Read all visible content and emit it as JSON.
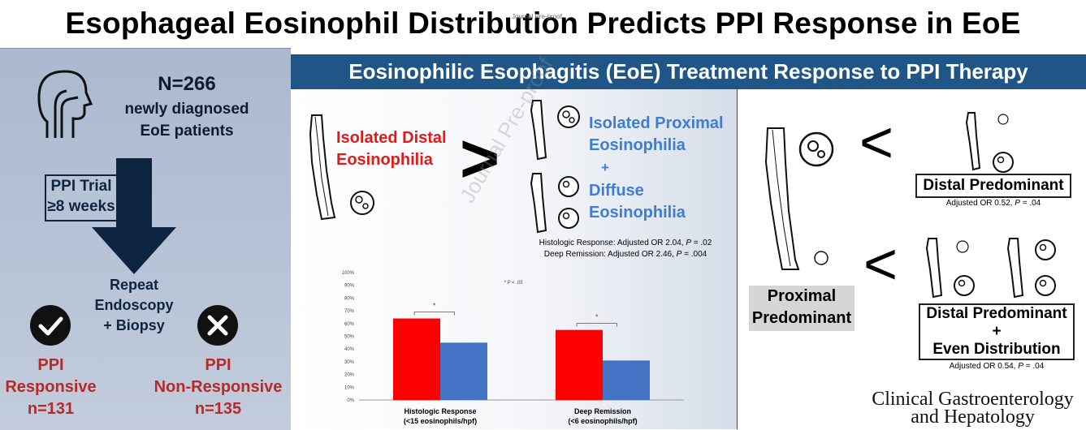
{
  "title": "Esophageal Eosinophil Distribution Predicts PPI Response in EoE",
  "watermark": "Journal Pre-proof",
  "left": {
    "n_label": "N=266",
    "patients_line1": "newly diagnosed",
    "patients_line2": "EoE patients",
    "trial_line1": "PPI Trial",
    "trial_line2": "≥8 weeks",
    "repeat_line1": "Repeat",
    "repeat_line2": "Endoscopy",
    "repeat_line3": "+ Biopsy",
    "responsive_line1": "PPI",
    "responsive_line2": "Responsive",
    "responsive_n": "n=131",
    "nonresponsive_line1": "PPI",
    "nonresponsive_line2": "Non-Responsive",
    "nonresponsive_n": "n=135"
  },
  "banner": "Eosinophilic Esophagitis (EoE) Treatment Response to PPI Therapy",
  "middle": {
    "distal_line1": "Isolated Distal",
    "distal_line2": "Eosinophilia",
    "greater_sign": ">",
    "proximal_line1": "Isolated Proximal",
    "proximal_line2": "Eosinophilia",
    "plus": "+",
    "diffuse_line1": "Diffuse",
    "diffuse_line2": "Eosinophilia",
    "histo_or_text": "Histologic Response: Adjusted OR 2.04, ",
    "histo_p_label": "P",
    "histo_p_value": " = .02",
    "deep_or_text": "Deep Remission: Adjusted OR 2.46, ",
    "deep_p_label": "P",
    "deep_p_value": " = .004",
    "sig_note": "* P < .05",
    "sig_star": "*"
  },
  "right": {
    "less_sign": "<",
    "proximal_line1": "Proximal",
    "proximal_line2": "Predominant",
    "distal_box": "Distal  Predominant",
    "distal_or_text": "Adjusted OR 0.52, ",
    "distal_p_label": "P",
    "distal_p_value": " = .04",
    "even_line1": "Distal Predominant",
    "even_plus": "+",
    "even_line2": "Even Distribution",
    "even_or_text": "Adjusted OR 0.54, ",
    "even_p_label": "P",
    "even_p_value": " = .04"
  },
  "journal_line1": "Clinical Gastroenterology",
  "journal_line2": "and Hepatology",
  "colors": {
    "red_bar": "#ff0000",
    "blue_bar": "#4472c4",
    "banner": "#1f5687",
    "response_red": "#b52a2a",
    "dark_navy": "#0d2540"
  },
  "chart_data": {
    "type": "bar",
    "categories": [
      "Histologic Response\n(<15 eosinophils/hpf)",
      "Deep Remission\n(<6 eosinophils/hpf)"
    ],
    "category_line1": [
      "Histologic Response",
      "Deep Remission"
    ],
    "category_line2": [
      "(<15 eosinophils/hpf)",
      "(<6 eosinophils/hpf)"
    ],
    "series": [
      {
        "values": [
          64,
          55
        ],
        "color": "#ff0000"
      },
      {
        "values": [
          45,
          31
        ],
        "color": "#4472c4"
      }
    ],
    "ylim": [
      0,
      100
    ],
    "yticks": [
      "0%",
      "10%",
      "20%",
      "30%",
      "40%",
      "50%",
      "60%",
      "70%",
      "80%",
      "90%",
      "100%"
    ],
    "grid": false,
    "annotations": [
      "* P < .05"
    ]
  }
}
